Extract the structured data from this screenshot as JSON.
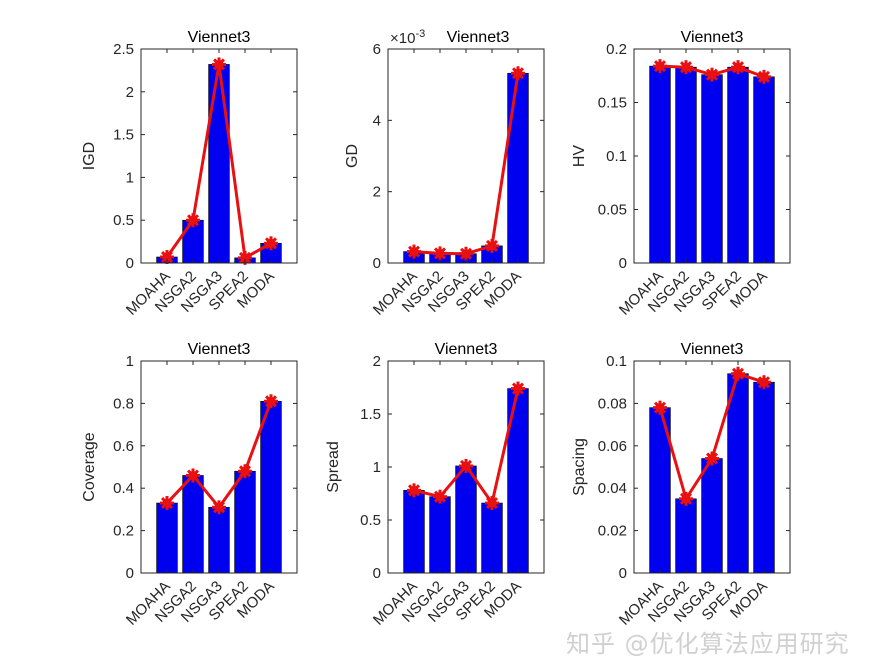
{
  "chart_data": [
    {
      "type": "bar",
      "title": "Viennet3",
      "ylabel": "IGD",
      "categories": [
        "MOAHA",
        "NSGA2",
        "NSGA3",
        "SPEA2",
        "MODA"
      ],
      "values": [
        0.07,
        0.5,
        2.32,
        0.06,
        0.23
      ],
      "ylim": [
        0,
        2.5
      ],
      "yticks": [
        0,
        0.5,
        1,
        1.5,
        2,
        2.5
      ],
      "ytick_labels": [
        "0",
        "0.5",
        "1",
        "1.5",
        "2",
        "2.5"
      ],
      "line_overlay": true
    },
    {
      "type": "bar",
      "title": "Viennet3",
      "ylabel": "GD",
      "exponent_label": "×10",
      "exponent": "-3",
      "categories": [
        "MOAHA",
        "NSGA2",
        "NSGA3",
        "SPEA2",
        "MODA"
      ],
      "values": [
        0.32,
        0.27,
        0.26,
        0.48,
        5.32
      ],
      "ylim": [
        0,
        6
      ],
      "yticks": [
        0,
        2,
        4,
        6
      ],
      "ytick_labels": [
        "0",
        "2",
        "4",
        "6"
      ],
      "line_overlay": true
    },
    {
      "type": "bar",
      "title": "Viennet3",
      "ylabel": "HV",
      "categories": [
        "MOAHA",
        "NSGA2",
        "NSGA3",
        "SPEA2",
        "MODA"
      ],
      "values": [
        0.184,
        0.183,
        0.176,
        0.183,
        0.174
      ],
      "ylim": [
        0,
        0.2
      ],
      "yticks": [
        0,
        0.05,
        0.1,
        0.15,
        0.2
      ],
      "ytick_labels": [
        "0",
        "0.05",
        "0.1",
        "0.15",
        "0.2"
      ],
      "line_overlay": true
    },
    {
      "type": "bar",
      "title": "Viennet3",
      "ylabel": "Coverage",
      "categories": [
        "MOAHA",
        "NSGA2",
        "NSGA3",
        "SPEA2",
        "MODA"
      ],
      "values": [
        0.33,
        0.46,
        0.31,
        0.48,
        0.81
      ],
      "ylim": [
        0,
        1
      ],
      "yticks": [
        0,
        0.2,
        0.4,
        0.6,
        0.8,
        1
      ],
      "ytick_labels": [
        "0",
        "0.2",
        "0.4",
        "0.6",
        "0.8",
        "1"
      ],
      "line_overlay": true
    },
    {
      "type": "bar",
      "title": "Viennet3",
      "ylabel": "Spread",
      "categories": [
        "MOAHA",
        "NSGA2",
        "NSGA3",
        "SPEA2",
        "MODA"
      ],
      "values": [
        0.78,
        0.72,
        1.01,
        0.66,
        1.74
      ],
      "ylim": [
        0,
        2
      ],
      "yticks": [
        0,
        0.5,
        1,
        1.5,
        2
      ],
      "ytick_labels": [
        "0",
        "0.5",
        "1",
        "1.5",
        "2"
      ],
      "line_overlay": true
    },
    {
      "type": "bar",
      "title": "Viennet3",
      "ylabel": "Spacing",
      "categories": [
        "MOAHA",
        "NSGA2",
        "NSGA3",
        "SPEA2",
        "MODA"
      ],
      "values": [
        0.078,
        0.035,
        0.054,
        0.094,
        0.09
      ],
      "ylim": [
        0,
        0.1
      ],
      "yticks": [
        0,
        0.02,
        0.04,
        0.06,
        0.08,
        0.1
      ],
      "ytick_labels": [
        "0",
        "0.02",
        "0.04",
        "0.06",
        "0.08",
        "0.1"
      ],
      "line_overlay": true
    }
  ],
  "colors": {
    "bar": "#0000F0",
    "line": "#E81010"
  },
  "watermark": "知乎 @优化算法应用研究"
}
